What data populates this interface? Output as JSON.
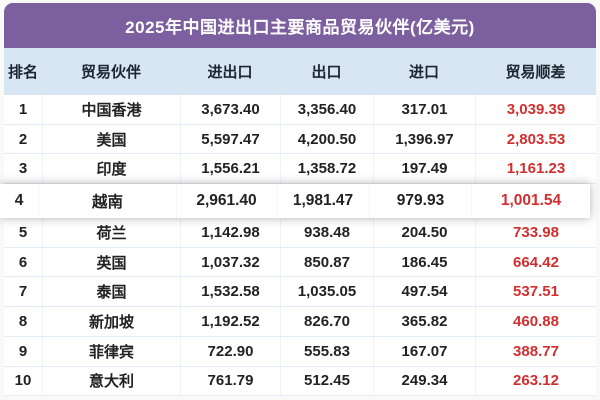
{
  "title": "2025年中国进出口主要商品贸易伙伴(亿美元)",
  "colors": {
    "title_bg": "#7c5f9f",
    "header_bg": "#d8e6f3",
    "surplus_red": "#d12f2f",
    "body_bg": "#ffffff",
    "text_dark": "#222222"
  },
  "table": {
    "header": [
      "排名",
      "贸易伙伴",
      "进出口",
      "出口",
      "进口",
      "贸易顺差"
    ],
    "rows": [
      {
        "rank": "1",
        "partner": "中国香港",
        "total": "3,673.40",
        "export": "3,356.40",
        "import": "317.01",
        "surplus": "3,039.39"
      },
      {
        "rank": "2",
        "partner": "美国",
        "total": "5,597.47",
        "export": "4,200.50",
        "import": "1,396.97",
        "surplus": "2,803.53"
      },
      {
        "rank": "3",
        "partner": "印度",
        "total": "1,556.21",
        "export": "1,358.72",
        "import": "197.49",
        "surplus": "1,161.23"
      },
      {
        "rank": "4",
        "partner": "越南",
        "total": "2,961.40",
        "export": "1,981.47",
        "import": "979.93",
        "surplus": "1,001.54"
      },
      {
        "rank": "5",
        "partner": "荷兰",
        "total": "1,142.98",
        "export": "938.48",
        "import": "204.50",
        "surplus": "733.98"
      },
      {
        "rank": "6",
        "partner": "英国",
        "total": "1,037.32",
        "export": "850.87",
        "import": "186.45",
        "surplus": "664.42"
      },
      {
        "rank": "7",
        "partner": "泰国",
        "total": "1,532.58",
        "export": "1,035.05",
        "import": "497.54",
        "surplus": "537.51"
      },
      {
        "rank": "8",
        "partner": "新加坡",
        "total": "1,192.52",
        "export": "826.70",
        "import": "365.82",
        "surplus": "460.88"
      },
      {
        "rank": "9",
        "partner": "菲律宾",
        "total": "722.90",
        "export": "555.83",
        "import": "167.07",
        "surplus": "388.77"
      },
      {
        "rank": "10",
        "partner": "意大利",
        "total": "761.79",
        "export": "512.45",
        "import": "249.34",
        "surplus": "263.12"
      }
    ],
    "highlighted_rank": "4"
  },
  "chart_data": {
    "type": "table",
    "title": "2025年中国进出口主要商品贸易伙伴(亿美元)",
    "columns": [
      "排名",
      "贸易伙伴",
      "进出口",
      "出口",
      "进口",
      "贸易顺差"
    ],
    "unit": "亿美元",
    "rows": [
      {
        "rank": 1,
        "partner": "中国香港",
        "total": 3673.4,
        "export": 3356.4,
        "import": 317.01,
        "surplus": 3039.39
      },
      {
        "rank": 2,
        "partner": "美国",
        "total": 5597.47,
        "export": 4200.5,
        "import": 1396.97,
        "surplus": 2803.53
      },
      {
        "rank": 3,
        "partner": "印度",
        "total": 1556.21,
        "export": 1358.72,
        "import": 197.49,
        "surplus": 1161.23
      },
      {
        "rank": 4,
        "partner": "越南",
        "total": 2961.4,
        "export": 1981.47,
        "import": 979.93,
        "surplus": 1001.54
      },
      {
        "rank": 5,
        "partner": "荷兰",
        "total": 1142.98,
        "export": 938.48,
        "import": 204.5,
        "surplus": 733.98
      },
      {
        "rank": 6,
        "partner": "英国",
        "total": 1037.32,
        "export": 850.87,
        "import": 186.45,
        "surplus": 664.42
      },
      {
        "rank": 7,
        "partner": "泰国",
        "total": 1532.58,
        "export": 1035.05,
        "import": 497.54,
        "surplus": 537.51
      },
      {
        "rank": 8,
        "partner": "新加坡",
        "total": 1192.52,
        "export": 826.7,
        "import": 365.82,
        "surplus": 460.88
      },
      {
        "rank": 9,
        "partner": "菲律宾",
        "total": 722.9,
        "export": 555.83,
        "import": 167.07,
        "surplus": 388.77
      },
      {
        "rank": 10,
        "partner": "意大利",
        "total": 761.79,
        "export": 512.45,
        "import": 249.34,
        "surplus": 263.12
      }
    ],
    "highlighted_row_rank": 4
  }
}
